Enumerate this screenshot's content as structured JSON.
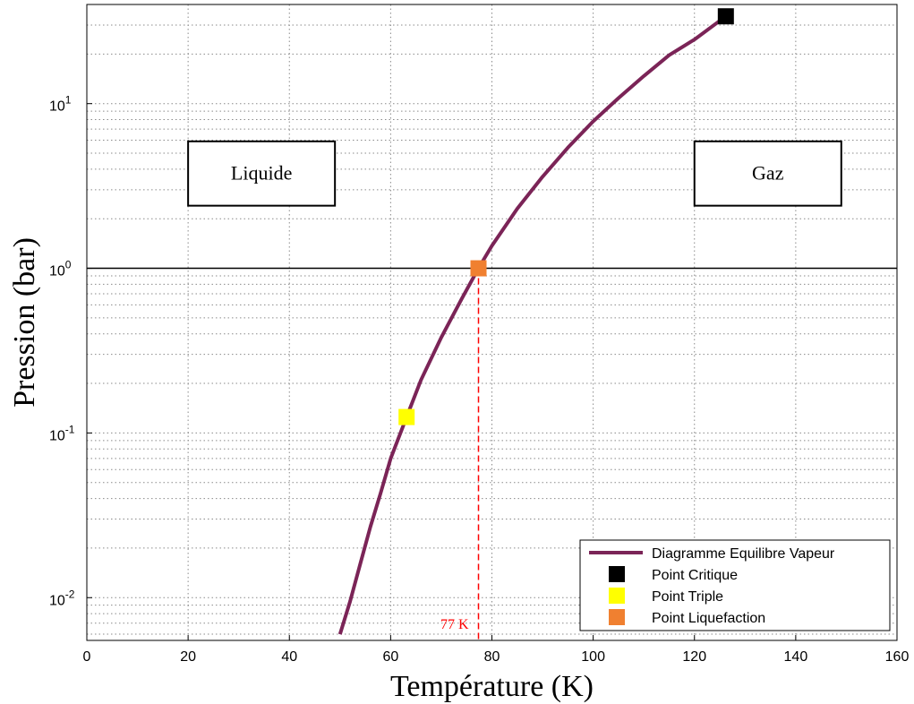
{
  "chart_data": {
    "type": "line",
    "xlabel": "Température (K)",
    "ylabel": "Pression (bar)",
    "xlim": [
      0,
      160
    ],
    "ylim": [
      0.0055,
      40
    ],
    "y_scale": "log",
    "grid": true,
    "x_ticks": [
      0,
      20,
      40,
      60,
      80,
      100,
      120,
      140,
      160
    ],
    "y_ticks": [
      {
        "value": 0.01,
        "base": "10",
        "exp": "-2"
      },
      {
        "value": 0.1,
        "base": "10",
        "exp": "-1"
      },
      {
        "value": 1,
        "base": "10",
        "exp": "0"
      },
      {
        "value": 10,
        "base": "10",
        "exp": "1"
      }
    ],
    "series": [
      {
        "name": "Diagramme Equilibre Vapeur",
        "color": "#7b2457",
        "x": [
          50,
          52,
          54,
          56,
          58,
          60,
          63.15,
          66,
          70,
          74,
          77.35,
          80,
          85,
          90,
          95,
          100,
          105,
          110,
          115,
          120,
          126.2
        ],
        "y": [
          0.006,
          0.0095,
          0.016,
          0.027,
          0.043,
          0.07,
          0.125,
          0.21,
          0.38,
          0.65,
          1.0,
          1.37,
          2.3,
          3.6,
          5.4,
          7.8,
          10.8,
          14.7,
          19.7,
          24.5,
          33.9
        ]
      }
    ],
    "points": [
      {
        "name": "Point Critique",
        "x": 126.2,
        "y": 33.9,
        "color": "#000000"
      },
      {
        "name": "Point Triple",
        "x": 63.15,
        "y": 0.125,
        "color": "#ffff00"
      },
      {
        "name": "Point Liquefaction",
        "x": 77.35,
        "y": 1.0,
        "color": "#f08030"
      }
    ],
    "reference_line": {
      "y": 1
    },
    "vertical_marker": {
      "x": 77.35,
      "label": "77 K",
      "color": "#ff0000"
    },
    "regions": [
      {
        "label": "Liquide",
        "x": [
          20,
          49
        ],
        "y": [
          2.4,
          5.9
        ]
      },
      {
        "label": "Gaz",
        "x": [
          120,
          149
        ],
        "y": [
          2.4,
          5.9
        ]
      }
    ],
    "legend": {
      "position": "bottom-right",
      "entries": [
        "Diagramme Equilibre Vapeur",
        "Point Critique",
        "Point Triple",
        "Point Liquefaction"
      ]
    }
  }
}
